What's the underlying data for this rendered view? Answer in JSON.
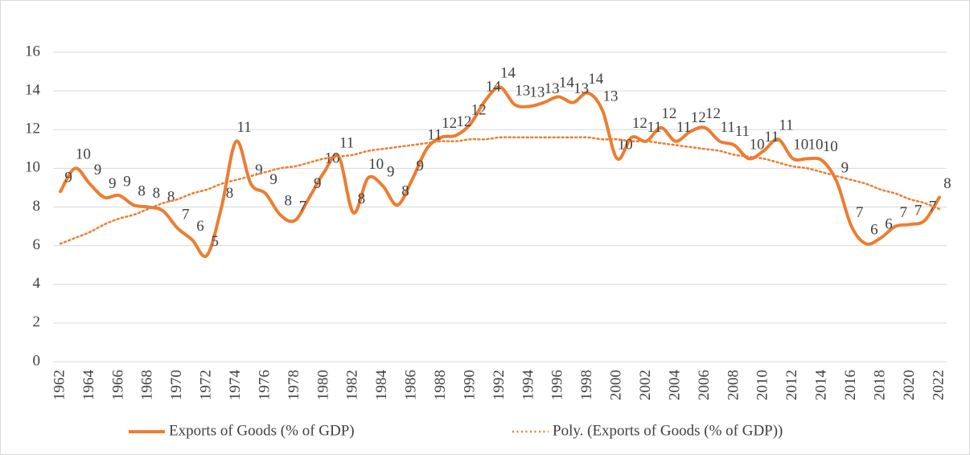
{
  "chart_data": {
    "type": "line",
    "categories": [
      "1962",
      null,
      "1964",
      null,
      "1966",
      null,
      "1968",
      null,
      "1970",
      null,
      "1972",
      null,
      "1974",
      null,
      "1976",
      null,
      "1978",
      null,
      "1980",
      null,
      "1982",
      null,
      "1984",
      null,
      "1986",
      null,
      "1988",
      null,
      "1990",
      null,
      "1992",
      null,
      "1994",
      null,
      "1996",
      null,
      "1998",
      null,
      "2000",
      null,
      "2002",
      null,
      "2004",
      null,
      "2006",
      null,
      "2008",
      null,
      "2010",
      null,
      "2012",
      null,
      "2014",
      null,
      "2016",
      null,
      "2018",
      null,
      "2020",
      null,
      "2022"
    ],
    "series": [
      {
        "name": "Exports of Goods (% of GDP)",
        "color": "#ED7D31",
        "style": "solid",
        "values": [
          8.8,
          10.0,
          9.2,
          8.5,
          8.6,
          8.1,
          8.0,
          7.8,
          6.9,
          6.3,
          5.5,
          8.0,
          11.4,
          9.2,
          8.7,
          7.6,
          7.3,
          8.5,
          9.8,
          10.6,
          7.7,
          9.5,
          9.1,
          8.1,
          9.4,
          11.0,
          11.6,
          11.7,
          12.3,
          13.5,
          14.2,
          13.3,
          13.2,
          13.4,
          13.7,
          13.4,
          13.9,
          13.0,
          10.5,
          11.6,
          11.4,
          12.1,
          11.4,
          11.9,
          12.1,
          11.4,
          11.2,
          10.5,
          10.9,
          11.5,
          10.5,
          10.5,
          10.4,
          9.3,
          7.0,
          6.1,
          6.4,
          7.0,
          7.1,
          7.3,
          8.5
        ],
        "value_labels": [
          "9",
          "10",
          "9",
          "9",
          "9",
          "8",
          "8",
          "8",
          "7",
          "6",
          "5",
          "8",
          "11",
          "9",
          "9",
          "8",
          "7",
          "9",
          "10",
          "11",
          "8",
          "10",
          "9",
          "8",
          "9",
          "11",
          "12",
          "12",
          "12",
          "14",
          "14",
          "13",
          "13",
          "13",
          "14",
          "13",
          "14",
          "13",
          "10",
          "12",
          "11",
          "12",
          "11",
          "12",
          "12",
          "11",
          "11",
          "10",
          "11",
          "11",
          "10",
          "10",
          "10",
          "9",
          "7",
          "6",
          "6",
          "7",
          "7",
          "7",
          "8"
        ]
      },
      {
        "name": "Poly. (Exports of Goods (% of GDP))",
        "color": "#ED7D31",
        "style": "dotted",
        "values": [
          6.1,
          6.4,
          6.7,
          7.1,
          7.4,
          7.6,
          7.9,
          8.2,
          8.4,
          8.7,
          8.9,
          9.2,
          9.4,
          9.6,
          9.8,
          10.0,
          10.1,
          10.3,
          10.5,
          10.6,
          10.7,
          10.9,
          11.0,
          11.1,
          11.2,
          11.3,
          11.4,
          11.4,
          11.5,
          11.5,
          11.6,
          11.6,
          11.6,
          11.6,
          11.6,
          11.6,
          11.6,
          11.5,
          11.5,
          11.4,
          11.4,
          11.3,
          11.2,
          11.1,
          11.0,
          10.9,
          10.7,
          10.6,
          10.5,
          10.3,
          10.1,
          10.0,
          9.8,
          9.6,
          9.4,
          9.2,
          8.9,
          8.7,
          8.4,
          8.2,
          7.9
        ]
      }
    ],
    "ylim": [
      0,
      16
    ],
    "yticks": [
      0,
      2,
      4,
      6,
      8,
      10,
      12,
      14,
      16
    ],
    "grid": true,
    "legend": "bottom"
  }
}
